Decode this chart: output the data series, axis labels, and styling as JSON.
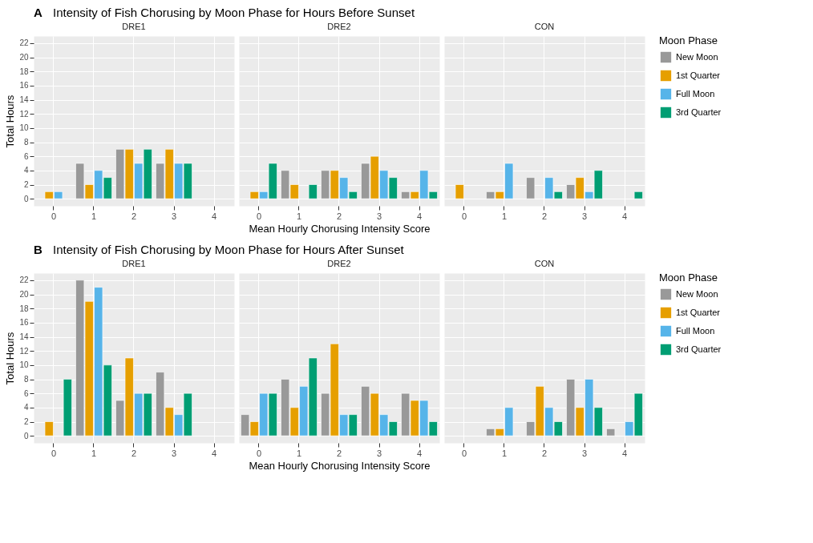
{
  "chart_data": [
    {
      "type": "bar",
      "title": "Intensity of Fish Chorusing by Moon Phase for Hours Before Sunset",
      "annotations": [
        "A"
      ],
      "subtitle": "DRE1",
      "ylabel": "Total Hours",
      "categories": [
        "0",
        "1",
        "2",
        "3",
        "4"
      ],
      "ylim": [
        -1,
        23
      ],
      "yticks": [
        0,
        2,
        4,
        6,
        8,
        10,
        12,
        14,
        16,
        18,
        20,
        22
      ],
      "grid": true,
      "series": [
        {
          "color": "#999999",
          "values": [
            null,
            5,
            7,
            5,
            null
          ]
        },
        {
          "color": "#e69f00",
          "values": [
            1,
            2,
            7,
            7,
            null
          ]
        },
        {
          "color": "#56b4e9",
          "values": [
            1,
            4,
            5,
            5,
            null
          ]
        },
        {
          "color": "#009e73",
          "values": [
            null,
            3,
            7,
            5,
            null
          ]
        }
      ]
    },
    {
      "type": "bar",
      "subtitle": "DRE2",
      "xlabel": "Mean Hourly Chorusing Intensity Score",
      "categories": [
        "0",
        "1",
        "2",
        "3",
        "4"
      ],
      "ylim": [
        -1,
        23
      ],
      "yticks": [
        0,
        2,
        4,
        6,
        8,
        10,
        12,
        14,
        16,
        18,
        20,
        22
      ],
      "grid": true,
      "tick_labels": "x",
      "series": [
        {
          "color": "#999999",
          "values": [
            null,
            4,
            4,
            5,
            1
          ]
        },
        {
          "color": "#e69f00",
          "values": [
            1,
            2,
            4,
            6,
            1
          ]
        },
        {
          "color": "#56b4e9",
          "values": [
            1,
            null,
            3,
            4,
            4
          ]
        },
        {
          "color": "#009e73",
          "values": [
            5,
            2,
            1,
            3,
            1
          ]
        }
      ]
    },
    {
      "type": "bar",
      "subtitle": "CON",
      "legend_title": "Moon Phase",
      "categories": [
        "0",
        "1",
        "2",
        "3",
        "4"
      ],
      "ylim": [
        -1,
        23
      ],
      "yticks": [
        0,
        2,
        4,
        6,
        8,
        10,
        12,
        14,
        16,
        18,
        20,
        22
      ],
      "grid": true,
      "legend": "right",
      "tick_labels": "x",
      "series": [
        {
          "name": "New Moon",
          "color": "#999999",
          "values": [
            null,
            1,
            3,
            2,
            null
          ]
        },
        {
          "name": "1st Quarter",
          "color": "#e69f00",
          "values": [
            2,
            1,
            null,
            3,
            null
          ]
        },
        {
          "name": "Full Moon",
          "color": "#56b4e9",
          "values": [
            null,
            5,
            3,
            1,
            null
          ]
        },
        {
          "name": "3rd Quarter",
          "color": "#009e73",
          "values": [
            null,
            null,
            1,
            4,
            1
          ]
        }
      ]
    },
    {
      "type": "bar",
      "title": "Intensity of Fish Chorusing by Moon Phase for Hours After Sunset",
      "annotations": [
        "B"
      ],
      "subtitle": "DRE1",
      "ylabel": "Total Hours",
      "categories": [
        "0",
        "1",
        "2",
        "3",
        "4"
      ],
      "ylim": [
        -1,
        23
      ],
      "yticks": [
        0,
        2,
        4,
        6,
        8,
        10,
        12,
        14,
        16,
        18,
        20,
        22
      ],
      "grid": true,
      "series": [
        {
          "color": "#999999",
          "values": [
            null,
            22,
            5,
            9,
            null
          ]
        },
        {
          "color": "#e69f00",
          "values": [
            2,
            19,
            11,
            4,
            null
          ]
        },
        {
          "color": "#56b4e9",
          "values": [
            null,
            21,
            6,
            3,
            null
          ]
        },
        {
          "color": "#009e73",
          "values": [
            8,
            10,
            6,
            6,
            null
          ]
        }
      ]
    },
    {
      "type": "bar",
      "subtitle": "DRE2",
      "xlabel": "Mean Hourly Chorusing Intensity Score",
      "categories": [
        "0",
        "1",
        "2",
        "3",
        "4"
      ],
      "ylim": [
        -1,
        23
      ],
      "yticks": [
        0,
        2,
        4,
        6,
        8,
        10,
        12,
        14,
        16,
        18,
        20,
        22
      ],
      "grid": true,
      "tick_labels": "x",
      "series": [
        {
          "color": "#999999",
          "values": [
            3,
            8,
            6,
            7,
            6
          ]
        },
        {
          "color": "#e69f00",
          "values": [
            2,
            4,
            13,
            6,
            5
          ]
        },
        {
          "color": "#56b4e9",
          "values": [
            6,
            7,
            3,
            3,
            5
          ]
        },
        {
          "color": "#009e73",
          "values": [
            6,
            11,
            3,
            2,
            2
          ]
        }
      ]
    },
    {
      "type": "bar",
      "subtitle": "CON",
      "legend_title": "Moon Phase",
      "categories": [
        "0",
        "1",
        "2",
        "3",
        "4"
      ],
      "ylim": [
        -1,
        23
      ],
      "yticks": [
        0,
        2,
        4,
        6,
        8,
        10,
        12,
        14,
        16,
        18,
        20,
        22
      ],
      "grid": true,
      "legend": "right",
      "tick_labels": "x",
      "series": [
        {
          "name": "New Moon",
          "color": "#999999",
          "values": [
            null,
            1,
            2,
            8,
            1
          ]
        },
        {
          "name": "1st Quarter",
          "color": "#e69f00",
          "values": [
            null,
            1,
            7,
            4,
            null
          ]
        },
        {
          "name": "Full Moon",
          "color": "#56b4e9",
          "values": [
            null,
            4,
            4,
            8,
            2
          ]
        },
        {
          "name": "3rd Quarter",
          "color": "#009e73",
          "values": [
            null,
            null,
            2,
            4,
            6
          ]
        }
      ]
    }
  ]
}
